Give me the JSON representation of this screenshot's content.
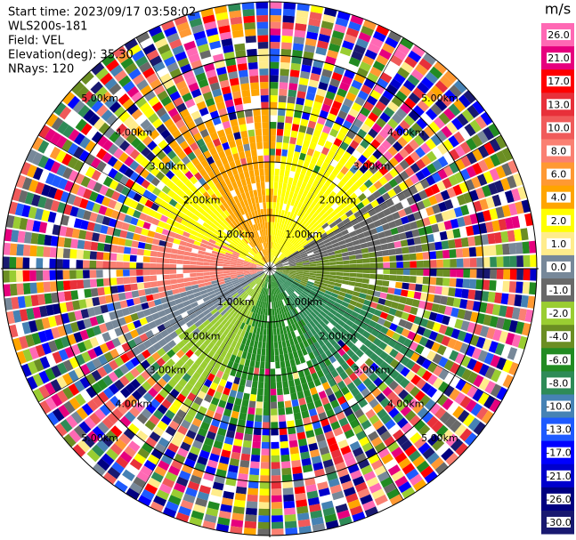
{
  "header": {
    "lines": [
      "Start time: 2023/09/17 03:58:02",
      "WLS200s-181",
      "Field: VEL",
      "Elevation(deg): 35.30",
      "NRays: 120"
    ]
  },
  "ring_labels": [
    "1.00km",
    "2.00km",
    "3.00km",
    "4.00km",
    "5.00km"
  ],
  "colorbar": {
    "unit": "m/s",
    "bands": [
      {
        "label": "26.0",
        "color": "#ff69b4"
      },
      {
        "label": "21.0",
        "color": "#e6007e"
      },
      {
        "label": "17.0",
        "color": "#ff0000"
      },
      {
        "label": "13.0",
        "color": "#e8303a"
      },
      {
        "label": "10.0",
        "color": "#f05a5a"
      },
      {
        "label": "8.0",
        "color": "#fa8072"
      },
      {
        "label": "6.0",
        "color": "#ff9933"
      },
      {
        "label": "4.0",
        "color": "#ffa500"
      },
      {
        "label": "2.0",
        "color": "#ffff00"
      },
      {
        "label": "1.0",
        "color": "#ffec8b"
      },
      {
        "label": "0.0",
        "color": "#778899"
      },
      {
        "label": "-1.0",
        "color": "#696969"
      },
      {
        "label": "-2.0",
        "color": "#9acd32"
      },
      {
        "label": "-4.0",
        "color": "#6b8e23"
      },
      {
        "label": "-6.0",
        "color": "#228b22"
      },
      {
        "label": "-8.0",
        "color": "#2e8b57"
      },
      {
        "label": "-10.0",
        "color": "#4682b4"
      },
      {
        "label": "-13.0",
        "color": "#1e5aff"
      },
      {
        "label": "-17.0",
        "color": "#0000ff"
      },
      {
        "label": "-21.0",
        "color": "#0000cd"
      },
      {
        "label": "-26.0",
        "color": "#000080"
      },
      {
        "label": "-30.0",
        "color": "#191970"
      }
    ]
  }
}
